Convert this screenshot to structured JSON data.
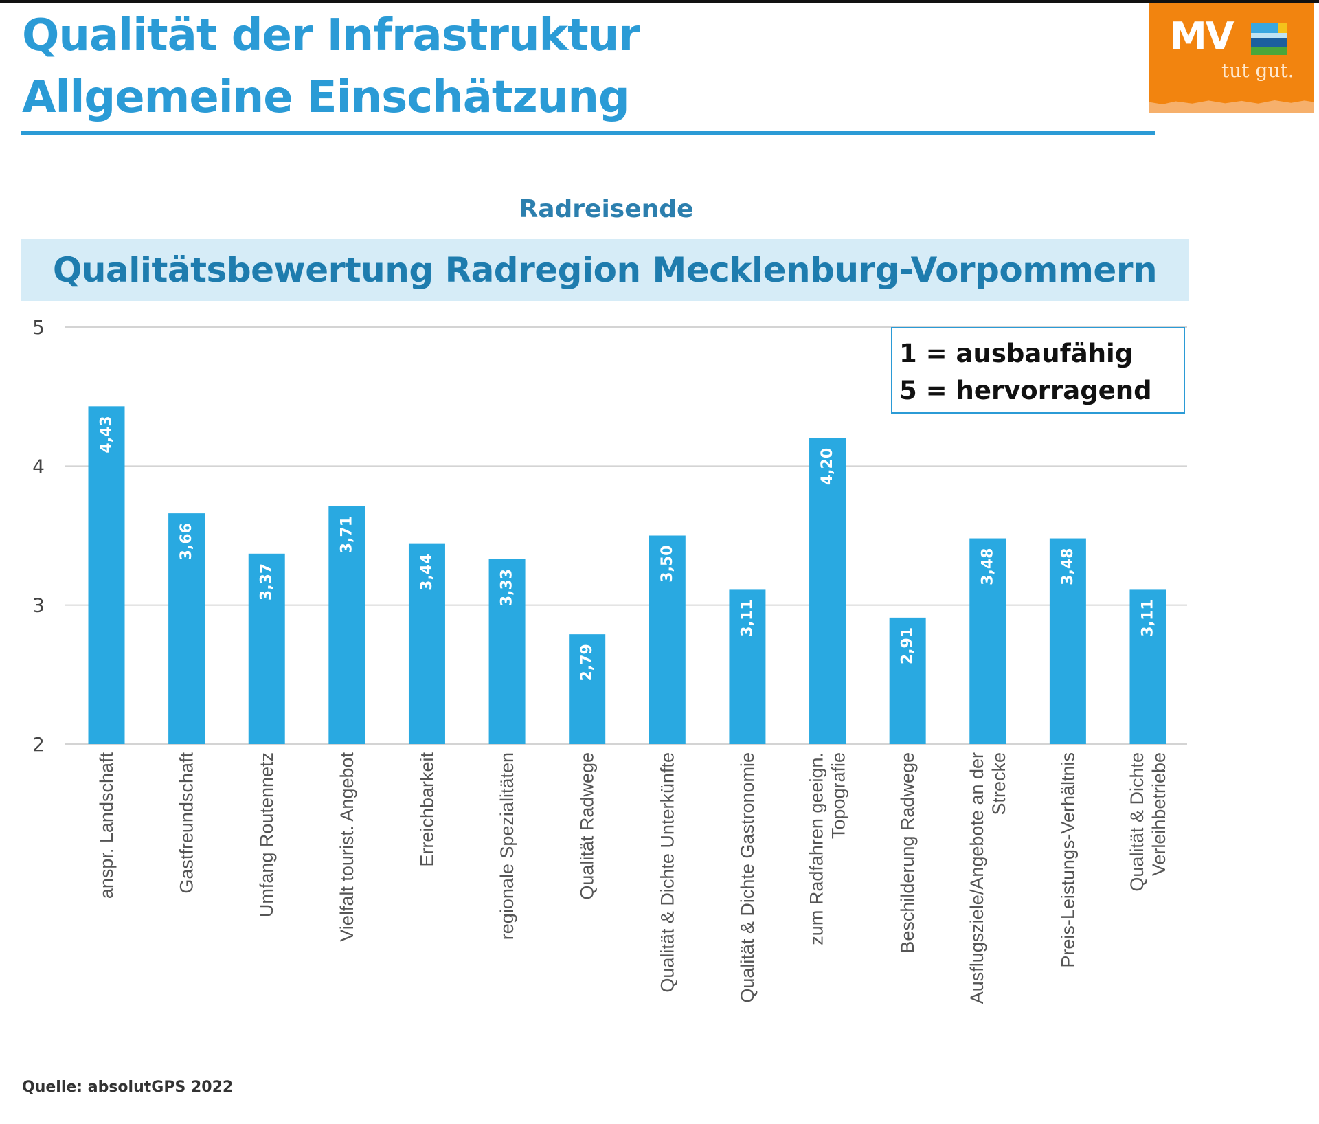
{
  "header": {
    "title_line1": "Qualität der Infrastruktur",
    "title_line2": "Allgemeine Einschätzung"
  },
  "logo": {
    "brand": "MV",
    "tagline": "tut gut.",
    "icon": "landscape-flag-icon"
  },
  "subtitle": "Radreisende",
  "band_title": "Qualitätsbewertung Radregion Mecklenburg-Vorpommern",
  "legend": {
    "line1": "1 = ausbaufähig",
    "line2": "5 = hervorragend"
  },
  "source": "Quelle: absolutGPS 2022",
  "colors": {
    "accent": "#2b9bd6",
    "bar": "#29a9e1",
    "band_bg": "#d6ecf7",
    "logo_orange": "#f2840f"
  },
  "chart_data": {
    "type": "bar",
    "title": "Qualitätsbewertung Radregion Mecklenburg-Vorpommern",
    "xlabel": "",
    "ylabel": "",
    "ylim": [
      2,
      5
    ],
    "yticks": [
      2,
      3,
      4,
      5
    ],
    "grid": true,
    "legend_position": "top-right",
    "categories": [
      [
        "anspr. Landschaft"
      ],
      [
        "Gastfreundschaft"
      ],
      [
        "Umfang Routennetz"
      ],
      [
        "Vielfalt tourist. Angebot"
      ],
      [
        "Erreichbarkeit"
      ],
      [
        "regionale Spezialitäten"
      ],
      [
        "Qualität Radwege"
      ],
      [
        "Qualität & Dichte Unterkünfte"
      ],
      [
        "Qualität & Dichte Gastronomie"
      ],
      [
        "zum Radfahren geeign.",
        "Topografie"
      ],
      [
        "Beschilderung Radwege"
      ],
      [
        "Ausflugsziele/Angebote an der",
        "Strecke"
      ],
      [
        "Preis-Leistungs-Verhältnis"
      ],
      [
        "Qualität & Dichte",
        "Verleihbetriebe"
      ]
    ],
    "values": [
      4.43,
      3.66,
      3.37,
      3.71,
      3.44,
      3.33,
      2.79,
      3.5,
      3.11,
      4.2,
      2.91,
      3.48,
      3.48,
      3.11
    ],
    "value_labels": [
      "4,43",
      "3,66",
      "3,37",
      "3,71",
      "3,44",
      "3,33",
      "2,79",
      "3,50",
      "3,11",
      "4,20",
      "2,91",
      "3,48",
      "3,48",
      "3,11"
    ]
  }
}
